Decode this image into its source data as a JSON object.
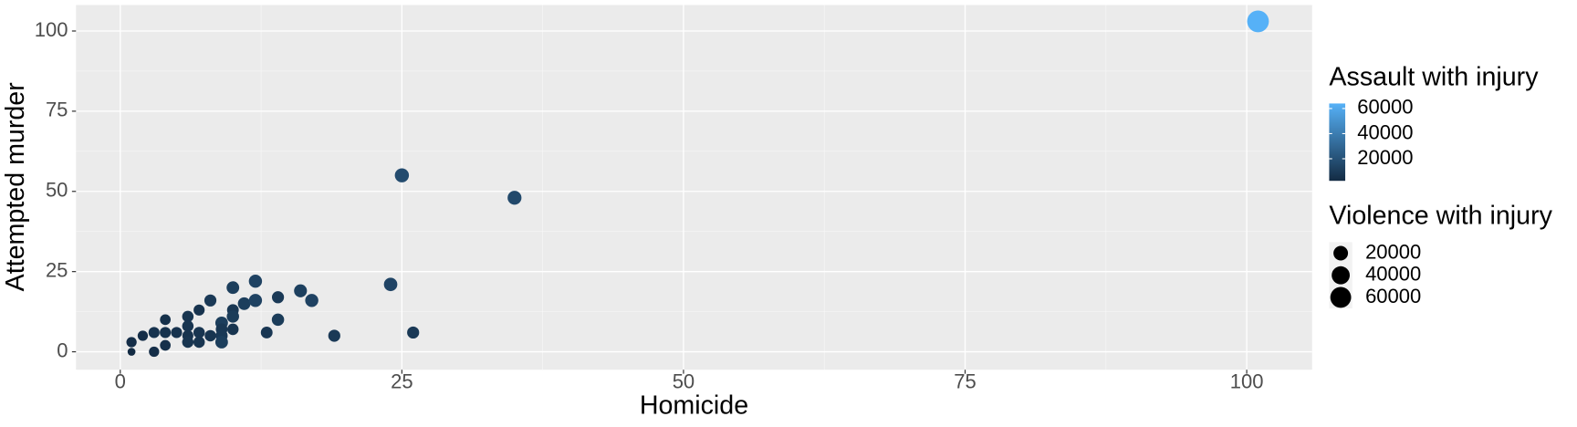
{
  "chart_data": {
    "type": "scatter",
    "x_label": "Homicide",
    "y_label": "Attempted murder",
    "x": [
      1,
      1,
      2,
      3,
      3,
      4,
      4,
      4,
      5,
      6,
      6,
      6,
      6,
      7,
      7,
      7,
      8,
      8,
      9,
      9,
      9,
      9,
      10,
      10,
      10,
      10,
      11,
      12,
      12,
      13,
      14,
      14,
      16,
      17,
      19,
      24,
      25,
      26,
      35,
      101
    ],
    "y": [
      3,
      0,
      5,
      6,
      0,
      10,
      6,
      2,
      6,
      11,
      8,
      5,
      3,
      13,
      6,
      3,
      16,
      5,
      9,
      7,
      5,
      3,
      20,
      13,
      11,
      7,
      15,
      22,
      16,
      6,
      17,
      10,
      19,
      16,
      5,
      21,
      55,
      6,
      48,
      103
    ],
    "size": [
      5000,
      1000,
      5000,
      7000,
      5000,
      6000,
      7000,
      6000,
      7000,
      8000,
      8000,
      7000,
      8000,
      7000,
      8000,
      8000,
      10000,
      8000,
      12000,
      9000,
      10000,
      12000,
      12000,
      9000,
      11000,
      8000,
      12000,
      14000,
      14000,
      9000,
      10000,
      11000,
      13000,
      14000,
      10000,
      15000,
      18000,
      10000,
      17000,
      68000
    ],
    "color_values": [
      4000,
      2500,
      4000,
      6000,
      4000,
      5000,
      6000,
      5000,
      6000,
      7000,
      7000,
      6000,
      7000,
      6000,
      7000,
      7000,
      9000,
      7000,
      11000,
      8000,
      9000,
      11000,
      11000,
      8000,
      10000,
      7000,
      11000,
      13000,
      13000,
      8000,
      9000,
      10000,
      12000,
      13000,
      9000,
      14000,
      17000,
      9000,
      16000,
      64000
    ],
    "xlim": [
      -3.93,
      105.8
    ],
    "ylim": [
      -5.6,
      108.1
    ],
    "xticks": [
      0,
      25,
      50,
      75,
      100
    ],
    "yticks": [
      0,
      25,
      50,
      75,
      100
    ],
    "xminorticks": [
      12.5,
      37.5,
      62.5,
      87.5
    ],
    "yminorticks": [
      12.5,
      37.5,
      62.5,
      87.5
    ],
    "grid": true,
    "color_legend": {
      "title": "Assault with injury",
      "low_color": "#132b43",
      "high_color": "#56b1f7",
      "lim": [
        2400,
        64000
      ],
      "ticks": [
        20000,
        40000,
        60000
      ]
    },
    "size_legend": {
      "title": "Violence with injury",
      "ticks": [
        20000,
        40000,
        60000
      ],
      "color": "#000000"
    }
  }
}
